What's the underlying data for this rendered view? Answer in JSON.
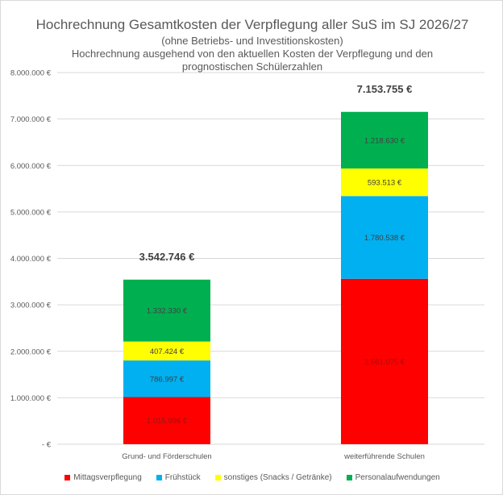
{
  "chart_data": {
    "type": "bar",
    "stacked": true,
    "title": "Hochrechnung Gesamtkosten der Verpflegung aller SuS im SJ 2026/27",
    "subtitle": "(ohne Betriebs- und Investitionskosten)",
    "subtitle2_line1": "Hochrechnung ausgehend von den aktuellen Kosten der Verpflegung und den",
    "subtitle2_line2": "prognostischen Schülerzahlen",
    "categories": [
      "Grund- und Förderschulen",
      "weiterführende Schulen"
    ],
    "series": [
      {
        "name": "Mittagsverpflegung",
        "color": "#ff0000",
        "values": [
          1015996,
          3561075
        ],
        "labels": [
          "1.015.996 €",
          "3.561.075 €"
        ]
      },
      {
        "name": "Frühstück",
        "color": "#00b0f0",
        "values": [
          786997,
          1780538
        ],
        "labels": [
          "786.997 €",
          "1.780.538 €"
        ]
      },
      {
        "name": "sonstiges (Snacks / Getränke)",
        "color": "#ffff00",
        "values": [
          407424,
          593513
        ],
        "labels": [
          "407.424 €",
          "593.513 €"
        ]
      },
      {
        "name": "Personalaufwendungen",
        "color": "#00b050",
        "values": [
          1332330,
          1218630
        ],
        "labels": [
          "1.332.330 €",
          "1.218.630 €"
        ]
      }
    ],
    "totals": [
      "3.542.746 €",
      "7.153.755 €"
    ],
    "ylim": [
      0,
      8000000
    ],
    "yticks": [
      0,
      1000000,
      2000000,
      3000000,
      4000000,
      5000000,
      6000000,
      7000000,
      8000000
    ],
    "ytick_labels": [
      "-   €",
      "1.000.000 €",
      "2.000.000 €",
      "3.000.000 €",
      "4.000.000 €",
      "5.000.000 €",
      "6.000.000 €",
      "7.000.000 €",
      "8.000.000 €"
    ],
    "grid": true,
    "legend": "bottom"
  }
}
